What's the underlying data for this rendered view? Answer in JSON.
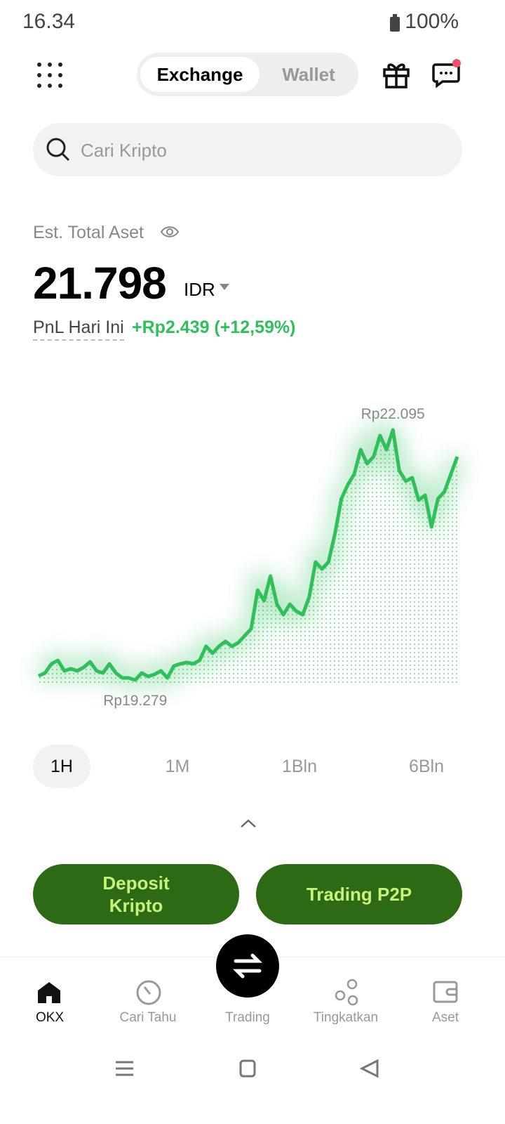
{
  "status_bar": {
    "time": "16.34",
    "battery": "100%"
  },
  "header": {
    "tabs": [
      "Exchange",
      "Wallet"
    ]
  },
  "search": {
    "placeholder": "Cari Kripto"
  },
  "balance": {
    "label": "Est. Total Aset",
    "amount": "21.798",
    "currency": "IDR",
    "pnl_label": "PnL Hari Ini",
    "pnl_value": "+Rp2.439 (+12,59%)"
  },
  "chart": {
    "type": "line",
    "color": "#2fbf5b",
    "max_label": "Rp22.095",
    "min_label": "Rp19.279",
    "values": [
      19326,
      19358,
      19461,
      19500,
      19382,
      19406,
      19382,
      19421,
      19485,
      19382,
      19358,
      19461,
      19358,
      19303,
      19303,
      19279,
      19358,
      19319,
      19342,
      19382,
      19303,
      19437,
      19461,
      19477,
      19461,
      19500,
      19659,
      19580,
      19659,
      19714,
      19659,
      19698,
      19777,
      19856,
      20291,
      20173,
      20450,
      20133,
      20015,
      20133,
      20054,
      20015,
      20212,
      20608,
      20529,
      20608,
      20924,
      21320,
      21478,
      21597,
      21873,
      21715,
      21794,
      22032,
      21873,
      22095,
      21636,
      21518,
      21557,
      21304,
      21360,
      21003,
      21320,
      21399,
      21597,
      21794
    ]
  },
  "range_tabs": [
    "1H",
    "1M",
    "1Bln",
    "6Bln"
  ],
  "actions": [
    "Deposit Kripto",
    "Trading P2P"
  ],
  "nav": [
    "OKX",
    "Cari Tahu",
    "Trading",
    "Tingkatkan",
    "Aset"
  ]
}
